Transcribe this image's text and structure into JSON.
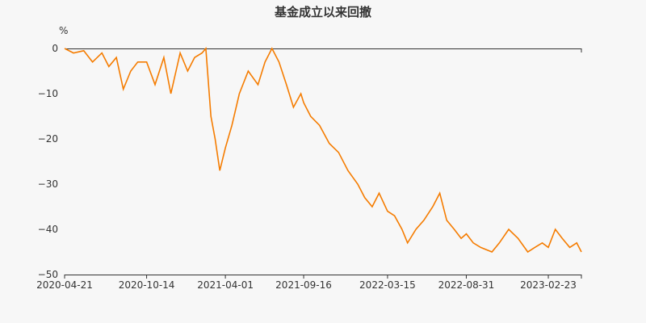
{
  "chart_data": {
    "type": "line",
    "title": "基金成立以来回撤",
    "y_unit": "%",
    "xlabel": "",
    "ylabel": "",
    "ylim": [
      -50,
      0
    ],
    "y_ticks": [
      0,
      -10,
      -20,
      -30,
      -40,
      -50
    ],
    "x_ticks": [
      "2020-04-21",
      "2020-10-14",
      "2021-04-01",
      "2021-09-16",
      "2022-03-15",
      "2022-08-31",
      "2023-02-23"
    ],
    "xlim": [
      "2020-04-21",
      "2023-05-05"
    ],
    "grid": false,
    "legend": "none",
    "color": "#f57c00",
    "series": [
      {
        "x": [
          "2020-04-21",
          "2020-05-10",
          "2020-06-01",
          "2020-06-20",
          "2020-07-10",
          "2020-07-25",
          "2020-08-10",
          "2020-08-25",
          "2020-09-10",
          "2020-09-25",
          "2020-10-14",
          "2020-11-01",
          "2020-11-20",
          "2020-12-05",
          "2020-12-25",
          "2021-01-10",
          "2021-01-25",
          "2021-02-10",
          "2021-02-18",
          "2021-03-01",
          "2021-03-10",
          "2021-03-20",
          "2021-04-01",
          "2021-04-15",
          "2021-05-01",
          "2021-05-20",
          "2021-06-10",
          "2021-06-25",
          "2021-07-10",
          "2021-07-25",
          "2021-08-10",
          "2021-08-25",
          "2021-09-10",
          "2021-09-16",
          "2021-10-01",
          "2021-10-20",
          "2021-11-10",
          "2021-11-30",
          "2021-12-20",
          "2022-01-10",
          "2022-01-25",
          "2022-02-10",
          "2022-02-25",
          "2022-03-15",
          "2022-03-30",
          "2022-04-15",
          "2022-04-27",
          "2022-05-15",
          "2022-06-01",
          "2022-06-20",
          "2022-07-05",
          "2022-07-20",
          "2022-08-05",
          "2022-08-20",
          "2022-08-31",
          "2022-09-15",
          "2022-10-01",
          "2022-10-25",
          "2022-11-10",
          "2022-11-30",
          "2022-12-20",
          "2023-01-10",
          "2023-01-25",
          "2023-02-10",
          "2023-02-23",
          "2023-03-10",
          "2023-03-25",
          "2023-04-10",
          "2023-04-25",
          "2023-05-05"
        ],
        "values": [
          0,
          -1,
          -0.5,
          -3,
          -1,
          -4,
          -2,
          -9,
          -5,
          -3,
          -3,
          -8,
          -2,
          -10,
          -1,
          -5,
          -2,
          -1,
          0,
          -15,
          -20,
          -27,
          -22,
          -17,
          -10,
          -5,
          -8,
          -3,
          0,
          -3,
          -8,
          -13,
          -10,
          -12,
          -15,
          -17,
          -21,
          -23,
          -27,
          -30,
          -33,
          -35,
          -32,
          -36,
          -37,
          -40,
          -43,
          -40,
          -38,
          -35,
          -32,
          -38,
          -40,
          -42,
          -41,
          -43,
          -44,
          -45,
          -43,
          -40,
          -42,
          -45,
          -44,
          -43,
          -44,
          -40,
          -42,
          -44,
          -43,
          -45
        ]
      }
    ]
  }
}
